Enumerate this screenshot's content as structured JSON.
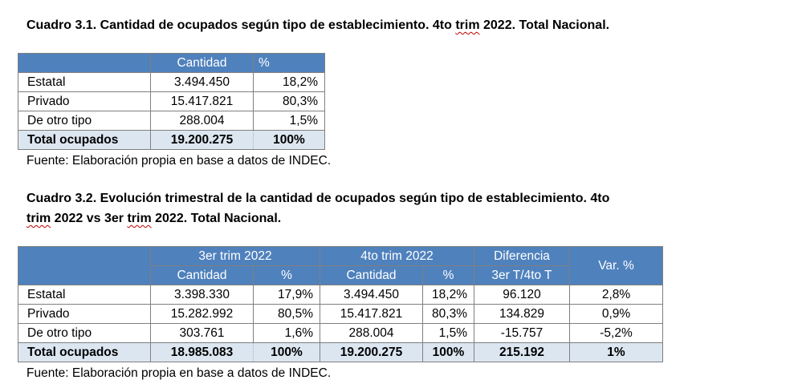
{
  "table1": {
    "caption_prefix": "Cuadro 3.1. Cantidad de ocupados según tipo de establecimiento. 4to ",
    "caption_flag": "trim",
    "caption_suffix": " 2022. Total Nacional.",
    "headers": [
      "Cantidad",
      "%"
    ],
    "rows": [
      {
        "label": "Estatal",
        "cantidad": "3.494.450",
        "pct": "18,2%"
      },
      {
        "label": "Privado",
        "cantidad": "15.417.821",
        "pct": "80,3%"
      },
      {
        "label": "De otro tipo",
        "cantidad": "288.004",
        "pct": "1,5%"
      }
    ],
    "total": {
      "label": "Total ocupados",
      "cantidad": "19.200.275",
      "pct": "100%"
    },
    "source": "Fuente: Elaboración propia en base a datos de INDEC."
  },
  "table2": {
    "caption_line1": "Cuadro 3.2. Evolución trimestral de la cantidad de ocupados según tipo de establecimiento. 4to",
    "caption_line2_flag1": "trim",
    "caption_line2_mid": " 2022 vs 3er ",
    "caption_line2_flag2": "trim",
    "caption_line2_suffix": " 2022. Total Nacional.",
    "group1": "3er trim 2022",
    "group2": "4to trim 2022",
    "diff_header_line1": "Diferencia",
    "diff_header_line2": "3er T/4to T",
    "var_header": "Var. %",
    "sub_cantidad": "Cantidad",
    "sub_pct": "%",
    "rows": [
      {
        "label": "Estatal",
        "q3": "3.398.330",
        "q3pct": "17,9%",
        "q4": "3.494.450",
        "q4pct": "18,2%",
        "diff": "96.120",
        "var": "2,8%"
      },
      {
        "label": "Privado",
        "q3": "15.282.992",
        "q3pct": "80,5%",
        "q4": "15.417.821",
        "q4pct": "80,3%",
        "diff": "134.829",
        "var": "0,9%"
      },
      {
        "label": "De otro tipo",
        "q3": "303.761",
        "q3pct": "1,6%",
        "q4": "288.004",
        "q4pct": "1,5%",
        "diff": "-15.757",
        "var": "-5,2%"
      }
    ],
    "total": {
      "label": "Total ocupados",
      "q3": "18.985.083",
      "q3pct": "100%",
      "q4": "19.200.275",
      "q4pct": "100%",
      "diff": "215.192",
      "var": "1%"
    },
    "source": "Fuente: Elaboración propia en base a datos de INDEC."
  },
  "colors": {
    "header_bg": "#4f81bd",
    "total_bg": "#dce6f1",
    "spell_underline": "#c00000"
  }
}
